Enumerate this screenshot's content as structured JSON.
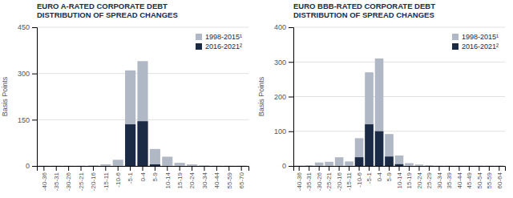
{
  "chart_data": [
    {
      "type": "bar",
      "title": "EURO A-RATED CORPORATE DEBT\nDISTRIBUTION OF SPREAD CHANGES",
      "ylabel": "Basis Points",
      "categories": [
        "-40-36",
        "-35-31",
        "-30-26",
        "-25-21",
        "-20-16",
        "-15-11",
        "-10-6",
        "-5-1",
        "0-4",
        "5-9",
        "10-14",
        "15-19",
        "20-24",
        "30-34",
        "40-44",
        "55-59",
        "65-70"
      ],
      "series": [
        {
          "name": "1998-2015¹",
          "color": "#b0b8c5",
          "values": [
            1,
            1,
            1,
            1,
            2,
            5,
            20,
            310,
            340,
            55,
            30,
            10,
            5,
            2,
            1,
            1,
            1
          ]
        },
        {
          "name": "2016-2021²",
          "color": "#1b2a45",
          "values": [
            0,
            0,
            0,
            0,
            0,
            0,
            0,
            135,
            145,
            5,
            0,
            0,
            0,
            0,
            0,
            0,
            0
          ]
        }
      ],
      "stacked": false,
      "ylim": [
        0,
        450
      ],
      "yticks": [
        0,
        150,
        300,
        450
      ],
      "grid": true,
      "legend": "upper right"
    },
    {
      "type": "bar",
      "title": "EURO BBB-RATED CORPORATE DEBT\nDISTRIBUTION OF SPREAD CHANGES",
      "ylabel": "Basis Points",
      "categories": [
        "-40-36",
        "-35-31",
        "-30-26",
        "-25-21",
        "-20-16",
        "-15-11",
        "-10-6",
        "-5-1",
        "0-4",
        "5-9",
        "10-14",
        "15-19",
        "20-24",
        "25-29",
        "30-34",
        "35-39",
        "40-44",
        "45-49",
        "50-54",
        "55-59",
        "60-64"
      ],
      "series": [
        {
          "name": "1998-2015¹",
          "color": "#b0b8c5",
          "values": [
            1,
            2,
            10,
            12,
            25,
            13,
            80,
            270,
            310,
            92,
            30,
            8,
            4,
            2,
            1,
            1,
            1,
            1,
            1,
            1,
            1
          ]
        },
        {
          "name": "2016-2021²",
          "color": "#1b2a45",
          "values": [
            0,
            0,
            0,
            0,
            0,
            0,
            25,
            120,
            100,
            27,
            5,
            0,
            0,
            0,
            0,
            0,
            0,
            0,
            0,
            0,
            0
          ]
        }
      ],
      "stacked": false,
      "ylim": [
        0,
        400
      ],
      "yticks": [
        0,
        100,
        200,
        300,
        400
      ],
      "grid": true,
      "legend": "upper right"
    }
  ]
}
